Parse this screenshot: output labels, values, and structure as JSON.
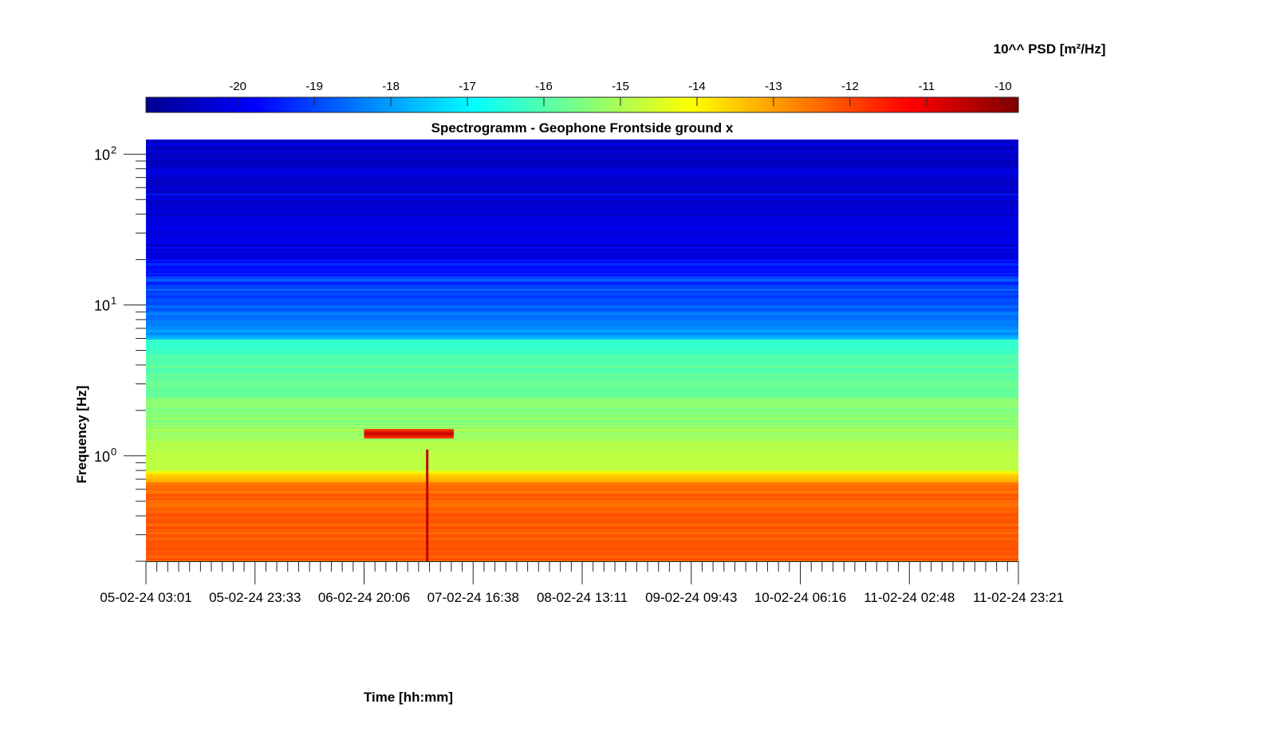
{
  "chart_data": {
    "type": "heatmap",
    "title": "Spectrogramm - Geophone Frontside ground x",
    "xlabel": "Time [hh:mm]",
    "ylabel": "Frequency [Hz]",
    "x_ticks": [
      "05-02-24 03:01",
      "05-02-24 23:33",
      "06-02-24 20:06",
      "07-02-24 16:38",
      "08-02-24 13:11",
      "09-02-24 09:43",
      "10-02-24 06:16",
      "11-02-24 02:48",
      "11-02-24 23:21"
    ],
    "y_scale": "log",
    "ylim": [
      0.2,
      125
    ],
    "y_ticks": [
      {
        "base": "10",
        "exp": "0",
        "value": 1
      },
      {
        "base": "10",
        "exp": "1",
        "value": 10
      },
      {
        "base": "10",
        "exp": "2",
        "value": 100
      }
    ],
    "colorbar": {
      "label": "10^^ PSD [m²/Hz]",
      "colormap": "jet",
      "range": [
        -21.2,
        -9.8
      ],
      "ticks": [
        "-20",
        "-19",
        "-18",
        "-17",
        "-16",
        "-15",
        "-14",
        "-13",
        "-12",
        "-11",
        "-10"
      ],
      "placement": "top"
    },
    "approx_levels": [
      {
        "freq_range_hz": [
          20,
          125
        ],
        "log_psd": -20
      },
      {
        "freq_range_hz": [
          6,
          20
        ],
        "log_psd": -18
      },
      {
        "freq_range_hz": [
          0.8,
          6
        ],
        "log_psd": -15.8
      },
      {
        "freq_range_hz": [
          0.2,
          0.7
        ],
        "log_psd": -12
      }
    ],
    "features": [
      {
        "kind": "band",
        "time_range": [
          "06-02-24 20:06",
          "07-02-24 13:00"
        ],
        "freq_hz": 1.4,
        "log_psd": -11
      },
      {
        "kind": "spike",
        "time": "07-02-24 08:00",
        "freq_range_hz": [
          0.2,
          1.1
        ],
        "log_psd": -10.5
      }
    ]
  }
}
